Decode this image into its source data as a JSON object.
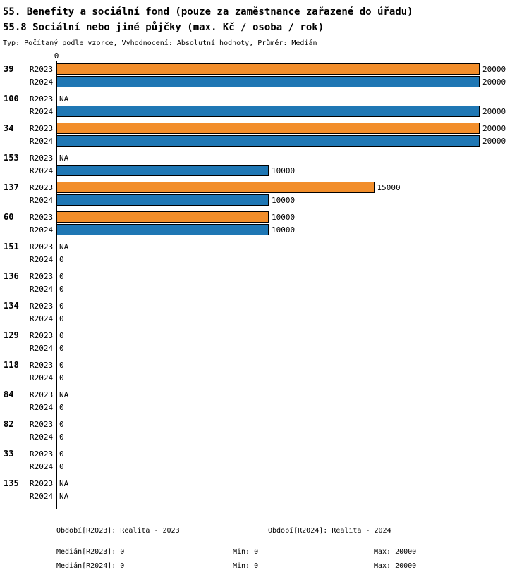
{
  "header": {
    "title_line1": "55. Benefity a sociální fond (pouze za zaměstnance zařazené do úřadu)",
    "title_line2": "55.8 Sociální nebo jiné půjčky (max. Kč / osoba / rok)",
    "subtitle": "Typ: Počítaný podle vzorce, Vyhodnocení: Absolutní hodnoty, Průměr: Medián"
  },
  "chart_data": {
    "type": "bar",
    "orientation": "horizontal",
    "title": "55.8 Sociální nebo jiné půjčky (max. Kč / osoba / rok)",
    "xlabel": "",
    "ylabel": "",
    "xlim": [
      0,
      20000
    ],
    "axis_origin_label": "0",
    "na_label": "NA",
    "grid": false,
    "series": [
      {
        "name": "R2023",
        "color": "#F28E2B"
      },
      {
        "name": "R2024",
        "color": "#1F77B4"
      }
    ],
    "groups": [
      {
        "id": "39",
        "values": [
          20000,
          20000
        ]
      },
      {
        "id": "100",
        "values": [
          null,
          20000
        ]
      },
      {
        "id": "34",
        "values": [
          20000,
          20000
        ]
      },
      {
        "id": "153",
        "values": [
          null,
          10000
        ]
      },
      {
        "id": "137",
        "values": [
          15000,
          10000
        ]
      },
      {
        "id": "60",
        "values": [
          10000,
          10000
        ]
      },
      {
        "id": "151",
        "values": [
          null,
          0
        ]
      },
      {
        "id": "136",
        "values": [
          0,
          0
        ]
      },
      {
        "id": "134",
        "values": [
          0,
          0
        ]
      },
      {
        "id": "129",
        "values": [
          0,
          0
        ]
      },
      {
        "id": "118",
        "values": [
          0,
          0
        ]
      },
      {
        "id": "84",
        "values": [
          null,
          0
        ]
      },
      {
        "id": "82",
        "values": [
          0,
          0
        ]
      },
      {
        "id": "33",
        "values": [
          0,
          0
        ]
      },
      {
        "id": "135",
        "values": [
          null,
          null
        ]
      }
    ]
  },
  "footer": {
    "period_r2023": "Období[R2023]: Realita - 2023",
    "period_r2024": "Období[R2024]: Realita - 2024",
    "median_r2023": "Medián[R2023]: 0",
    "min_r2023": "Min: 0",
    "max_r2023": "Max: 20000",
    "median_r2024": "Medián[R2024]: 0",
    "min_r2024": "Min: 0",
    "max_r2024": "Max: 20000"
  }
}
